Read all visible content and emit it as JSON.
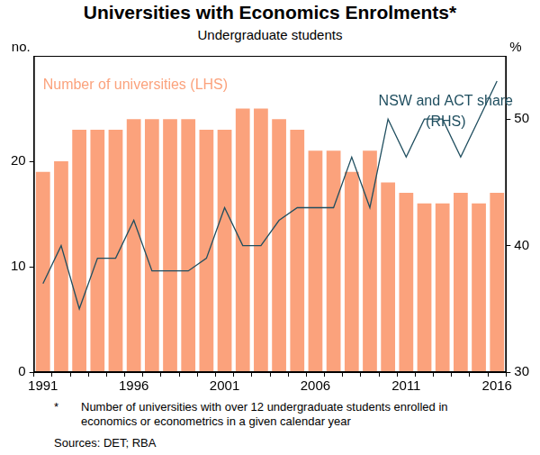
{
  "chart_data": {
    "type": "bar",
    "title": "Universities with Economics Enrolments*",
    "subtitle": "Undergraduate students",
    "categories": [
      "1991",
      null,
      null,
      null,
      null,
      "1996",
      null,
      null,
      null,
      null,
      "2001",
      null,
      null,
      null,
      null,
      "2006",
      null,
      null,
      null,
      null,
      "2011",
      null,
      null,
      null,
      null,
      "2016"
    ],
    "series": [
      {
        "name": "Number of universities (LHS)",
        "type": "bar",
        "color": "#fba27c",
        "values": [
          19,
          20,
          23,
          23,
          23,
          24,
          24,
          24,
          24,
          23,
          23,
          25,
          25,
          24,
          23,
          21,
          21,
          19,
          21,
          18,
          17,
          16,
          16,
          17,
          16,
          17
        ]
      },
      {
        "name": "NSW and ACT share (RHS)",
        "type": "line",
        "axis": "y2",
        "color": "#1f4e5f",
        "values": [
          37,
          40,
          35,
          39,
          39,
          42,
          38,
          38,
          38,
          39,
          43,
          40,
          40,
          42,
          43,
          43,
          43,
          47,
          43,
          50,
          47,
          50,
          50,
          47,
          50,
          53
        ]
      }
    ],
    "y_label": "no.",
    "y2_label": "%",
    "ylim": [
      0,
      30
    ],
    "yticks": [
      0,
      10,
      20
    ],
    "y2lim": [
      30,
      55
    ],
    "y2ticks": [
      30,
      40,
      50
    ],
    "grid": false,
    "footnote": {
      "marker": "*",
      "text": "Number of universities with over 12 undergraduate students enrolled in economics or econometrics in a given calendar year"
    },
    "sources": "Sources: DET; RBA"
  }
}
